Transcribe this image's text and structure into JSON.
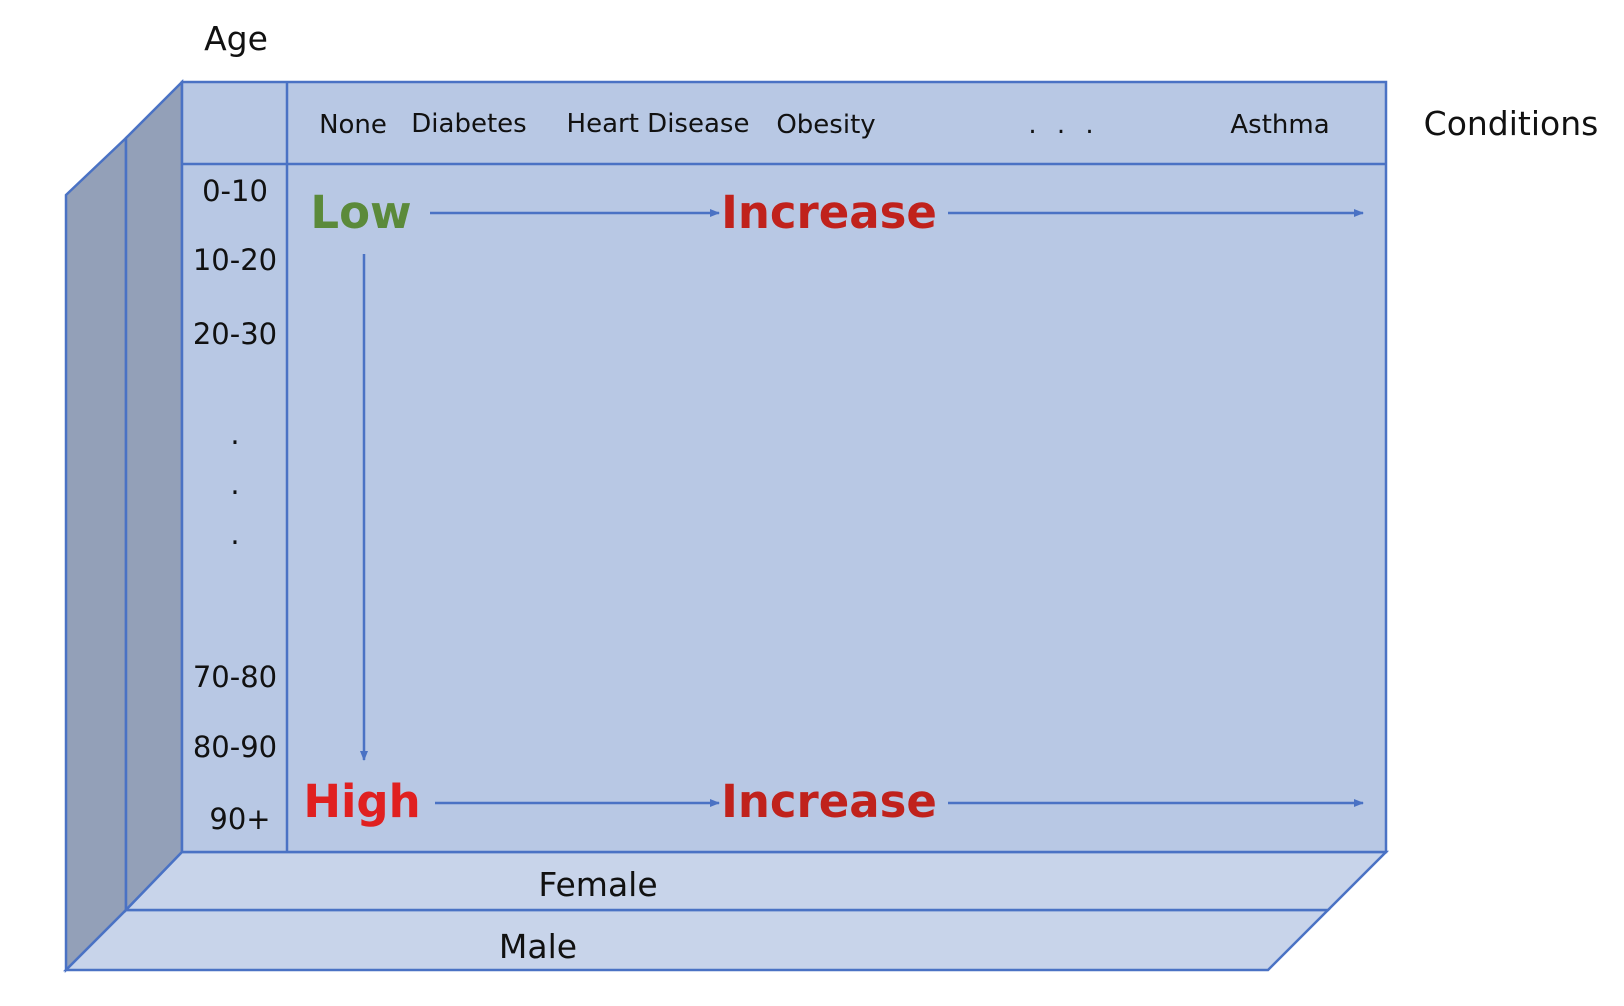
{
  "axes": {
    "age_title": "Age",
    "conditions_title": "Conditions"
  },
  "conditions": {
    "none": "None",
    "diabetes": "Diabetes",
    "heart_disease": "Heart Disease",
    "obesity": "Obesity",
    "ellipsis": ". . .",
    "asthma": "Asthma"
  },
  "age_groups": {
    "g0": "0-10",
    "g1": "10-20",
    "g2": "20-30",
    "dot1": ".",
    "dot2": ".",
    "dot3": ".",
    "g7": "70-80",
    "g8": "80-90",
    "g9": "90+"
  },
  "risk": {
    "low": "Low",
    "high": "High",
    "increase_top": "Increase",
    "increase_bottom": "Increase"
  },
  "layers": {
    "female": "Female",
    "male": "Male"
  },
  "colors": {
    "front_face": "#b8c8e4",
    "side_face": "#93a0b8",
    "bottom_face": "#c8d4ea",
    "stroke": "#4a72c4",
    "low": "#5b8a3a",
    "high": "#e02020",
    "increase": "#c0221c"
  }
}
